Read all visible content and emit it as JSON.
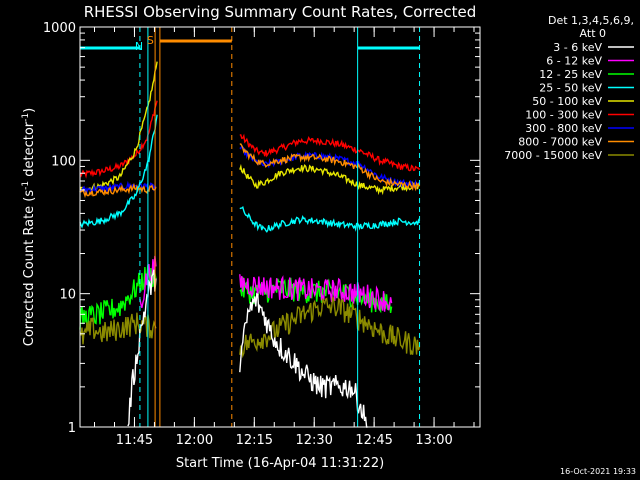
{
  "chart_data": {
    "type": "line",
    "title": "RHESSI Observing Summary Count Rates, Corrected",
    "xlabel": "Start Time (16-Apr-04 11:31:22)",
    "ylabel_main": "Corrected Count Rate (s",
    "ylabel_sup1": "-1",
    "ylabel_mid": " detector",
    "ylabel_sup2": "-1",
    "ylabel_end": ")",
    "yscale": "log",
    "ylim": [
      1,
      1000
    ],
    "xlim": [
      "11:31:22",
      "13:11:30"
    ],
    "x_ticks": [
      "11:45",
      "12:00",
      "12:15",
      "12:30",
      "12:45",
      "13:00"
    ],
    "y_ticks": [
      "1",
      "10",
      "100",
      "1000"
    ],
    "legend_header": [
      "Det 1,3,4,5,6,9,",
      "Att 0"
    ],
    "footer_date": "16-Oct-2021 19:33",
    "flag_labels": [
      "N",
      "S"
    ],
    "series": [
      {
        "name": "3 - 6 keV",
        "color": "#ffffff"
      },
      {
        "name": "6 - 12 keV",
        "color": "#ff00ff"
      },
      {
        "name": "12 - 25 keV",
        "color": "#00ff00"
      },
      {
        "name": "25 - 50 keV",
        "color": "#00ffff"
      },
      {
        "name": "50 - 100 keV",
        "color": "#e6e600"
      },
      {
        "name": "100 - 300 keV",
        "color": "#ff0000"
      },
      {
        "name": "300 - 800 keV",
        "color": "#0000ff"
      },
      {
        "name": "800 - 7000 keV",
        "color": "#ff8c00"
      },
      {
        "name": "7000 - 15000 keV",
        "color": "#8b8b00"
      }
    ],
    "curves": [
      {
        "series": 5,
        "segments": [
          [
            [
              0,
              78
            ],
            [
              5,
              82
            ],
            [
              10,
              90
            ],
            [
              14,
              110
            ],
            [
              17,
              150
            ],
            [
              18.5,
              230
            ],
            [
              19.3,
              280
            ]
          ],
          [
            [
              40,
              155
            ],
            [
              42,
              135
            ],
            [
              44,
              118
            ],
            [
              46,
              112
            ],
            [
              50,
              122
            ],
            [
              55,
              140
            ],
            [
              60,
              140
            ],
            [
              65,
              132
            ],
            [
              70,
              118
            ],
            [
              75,
              100
            ],
            [
              80,
              90
            ],
            [
              85,
              85
            ]
          ]
        ]
      },
      {
        "series": 4,
        "segments": [
          [
            [
              0,
              60
            ],
            [
              5,
              64
            ],
            [
              10,
              75
            ],
            [
              14,
              120
            ],
            [
              17,
              250
            ],
            [
              18.5,
              400
            ],
            [
              19.3,
              550
            ]
          ],
          [
            [
              40,
              90
            ],
            [
              42,
              75
            ],
            [
              44,
              65
            ],
            [
              46,
              68
            ],
            [
              50,
              80
            ],
            [
              55,
              88
            ],
            [
              60,
              85
            ],
            [
              65,
              76
            ],
            [
              70,
              65
            ],
            [
              75,
              60
            ],
            [
              80,
              63
            ],
            [
              85,
              64
            ]
          ]
        ]
      },
      {
        "series": 6,
        "segments": [
          [
            [
              0,
              60
            ],
            [
              7,
              62
            ],
            [
              14,
              65
            ],
            [
              19,
              63
            ]
          ],
          [
            [
              40,
              125
            ],
            [
              42,
              110
            ],
            [
              44,
              98
            ],
            [
              46,
              92
            ],
            [
              50,
              98
            ],
            [
              55,
              108
            ],
            [
              60,
              108
            ],
            [
              65,
              102
            ],
            [
              70,
              94
            ],
            [
              75,
              75
            ],
            [
              80,
              68
            ],
            [
              85,
              66
            ]
          ]
        ]
      },
      {
        "series": 7,
        "segments": [
          [
            [
              0,
              57
            ],
            [
              5,
              58
            ],
            [
              10,
              60
            ],
            [
              14,
              62
            ],
            [
              17,
              60
            ],
            [
              19,
              63
            ]
          ],
          [
            [
              40,
              128
            ],
            [
              42,
              112
            ],
            [
              44,
              100
            ],
            [
              46,
              94
            ],
            [
              50,
              100
            ],
            [
              55,
              106
            ],
            [
              60,
              104
            ],
            [
              65,
              98
            ],
            [
              70,
              88
            ],
            [
              75,
              70
            ],
            [
              80,
              66
            ],
            [
              85,
              64
            ]
          ]
        ]
      },
      {
        "series": 3,
        "segments": [
          [
            [
              0,
              33
            ],
            [
              5,
              35
            ],
            [
              10,
              40
            ],
            [
              14,
              55
            ],
            [
              17,
              95
            ],
            [
              18.5,
              160
            ],
            [
              19.3,
              220
            ]
          ],
          [
            [
              40,
              45
            ],
            [
              42,
              38
            ],
            [
              44,
              33
            ],
            [
              46,
              30
            ],
            [
              50,
              33
            ],
            [
              55,
              36
            ],
            [
              60,
              35
            ],
            [
              65,
              33
            ],
            [
              70,
              32
            ],
            [
              75,
              33
            ],
            [
              80,
              35
            ],
            [
              85,
              34
            ]
          ]
        ]
      },
      {
        "series": 2,
        "segments": [
          [
            [
              0,
              6.5
            ],
            [
              5,
              7
            ],
            [
              10,
              8
            ],
            [
              14,
              11
            ],
            [
              17,
              14
            ],
            [
              19,
              13
            ]
          ],
          [
            [
              40,
              11
            ],
            [
              44,
              10
            ],
            [
              50,
              11
            ],
            [
              55,
              10.5
            ],
            [
              60,
              10.2
            ],
            [
              65,
              10.2
            ],
            [
              70,
              9.5
            ],
            [
              75,
              8.5
            ],
            [
              78,
              8
            ]
          ]
        ]
      },
      {
        "series": 1,
        "segments": [
          [
            [
              15,
              8
            ],
            [
              17,
              14
            ],
            [
              19,
              16
            ]
          ],
          [
            [
              40,
              12
            ],
            [
              44,
              11.5
            ],
            [
              50,
              11
            ],
            [
              55,
              10.8
            ],
            [
              60,
              10.5
            ],
            [
              65,
              10.6
            ],
            [
              70,
              10
            ],
            [
              75,
              9.2
            ],
            [
              78,
              8.5
            ]
          ]
        ]
      },
      {
        "series": 8,
        "segments": [
          [
            [
              0,
              4.5
            ],
            [
              3,
              5.5
            ],
            [
              6,
              5
            ],
            [
              10,
              5.5
            ],
            [
              14,
              6
            ],
            [
              19,
              5.5
            ]
          ],
          [
            [
              40,
              4
            ],
            [
              44,
              4.5
            ],
            [
              48,
              5
            ],
            [
              52,
              6
            ],
            [
              56,
              7
            ],
            [
              60,
              8
            ],
            [
              64,
              8
            ],
            [
              68,
              7
            ],
            [
              72,
              6
            ],
            [
              76,
              5
            ],
            [
              80,
              4.5
            ],
            [
              85,
              4
            ]
          ]
        ]
      },
      {
        "series": 0,
        "segments": [
          [
            [
              12,
              1
            ],
            [
              13,
              2
            ],
            [
              14,
              3
            ],
            [
              15,
              5
            ],
            [
              16,
              7
            ],
            [
              17,
              10
            ],
            [
              18,
              12
            ],
            [
              19,
              13
            ]
          ],
          [
            [
              40,
              3
            ],
            [
              42,
              7
            ],
            [
              44,
              9
            ],
            [
              46,
              7
            ],
            [
              48,
              5
            ],
            [
              50,
              4
            ],
            [
              52,
              3.5
            ],
            [
              54,
              3
            ],
            [
              56,
              2.5
            ],
            [
              60,
              2
            ],
            [
              64,
              2
            ],
            [
              68,
              2
            ],
            [
              70,
              1.5
            ],
            [
              72,
              1
            ]
          ]
        ]
      }
    ],
    "flag_bars": [
      {
        "label": "N",
        "color": "#00ffff",
        "x0": 0,
        "x1": 15
      },
      {
        "label": "",
        "color": "#00ffff",
        "x0": 69.5,
        "x1": 85
      },
      {
        "label": "S",
        "color": "#ff8c00",
        "x0": 20,
        "x1": 38
      }
    ],
    "vlines": [
      {
        "x": 15,
        "color": "#00ffff",
        "style": "dash"
      },
      {
        "x": 17,
        "color": "#00ffff",
        "style": "solid"
      },
      {
        "x": 18.8,
        "color": "#ff8c00",
        "style": "solid"
      },
      {
        "x": 20,
        "color": "#ff8c00",
        "style": "solid"
      },
      {
        "x": 38,
        "color": "#ff8c00",
        "style": "dash"
      },
      {
        "x": 69.5,
        "color": "#00ffff",
        "style": "solid"
      },
      {
        "x": 85,
        "color": "#00ffff",
        "style": "dash"
      }
    ]
  }
}
